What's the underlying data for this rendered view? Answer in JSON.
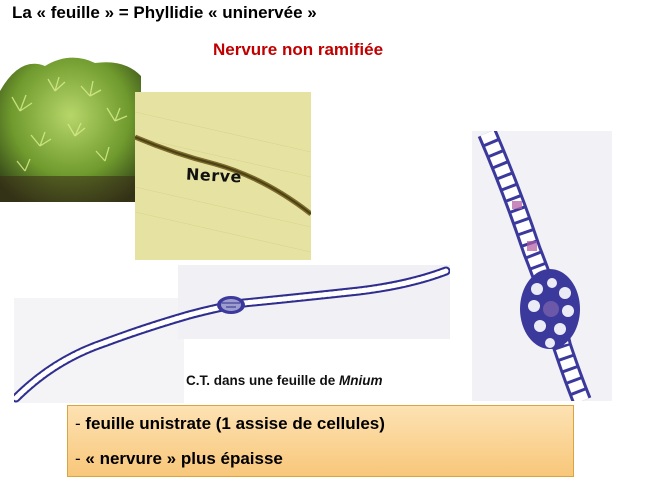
{
  "title": "La « feuille » =  Phyllidie « uninervée »",
  "subtitle": "Nervure non ramifiée",
  "photo_labels": {
    "nerve": "Nerve"
  },
  "caption": {
    "prefix": "C.T. dans une feuille de ",
    "genus": "Mnium"
  },
  "info": {
    "line1_dash": "- ",
    "line1": "feuille unistrate (1 assise de cellules)",
    "line2_dash": "- ",
    "line2": "« nervure » plus épaisse"
  },
  "colors": {
    "subtitle": "#c00000",
    "box_fill": "#f8c77a",
    "box_border": "#d9a441",
    "cell_stain": "#3b3a9c"
  }
}
